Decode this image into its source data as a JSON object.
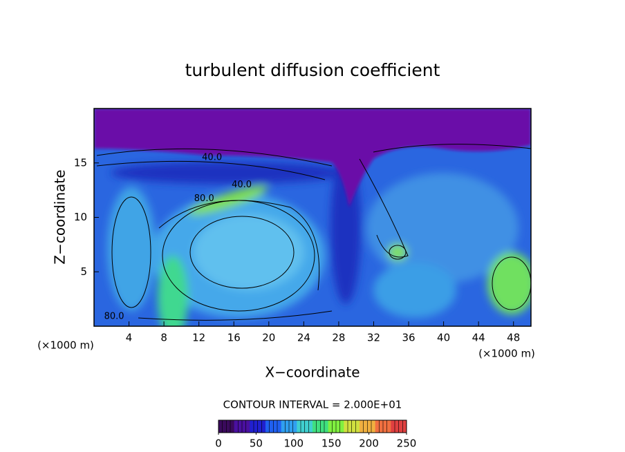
{
  "chart_data": {
    "type": "contour",
    "title": "turbulent diffusion coefficient",
    "x_label": "X−coordinate",
    "y_label": "Z−coordinate",
    "x_unit": "(×1000 m)",
    "y_unit": "(×1000 m)",
    "xlim": [
      0,
      50
    ],
    "ylim": [
      0,
      20
    ],
    "xticks": [
      4,
      8,
      12,
      16,
      20,
      24,
      28,
      32,
      36,
      40,
      44,
      48
    ],
    "yticks": [
      5,
      10,
      15
    ],
    "contour_interval": "CONTOUR INTERVAL = 2.000E+01",
    "annotations": [
      {
        "text": "40.0",
        "x": 13.5,
        "y": 15.5
      },
      {
        "text": "40.0",
        "x": 16.9,
        "y": 13.0
      },
      {
        "text": "80.0",
        "x": 12.6,
        "y": 11.7
      },
      {
        "text": "80.0",
        "x": 2.3,
        "y": 0.9
      }
    ],
    "colorbar": {
      "lim": [
        0,
        250
      ],
      "ticks": [
        0,
        50,
        100,
        150,
        200,
        250
      ],
      "colors": [
        "#3a0a5c",
        "#4a10a0",
        "#2020d0",
        "#2060f0",
        "#30a0f0",
        "#40d0d0",
        "#40e080",
        "#80f040",
        "#d0e040",
        "#f0b040",
        "#f07040",
        "#e04040"
      ]
    }
  }
}
